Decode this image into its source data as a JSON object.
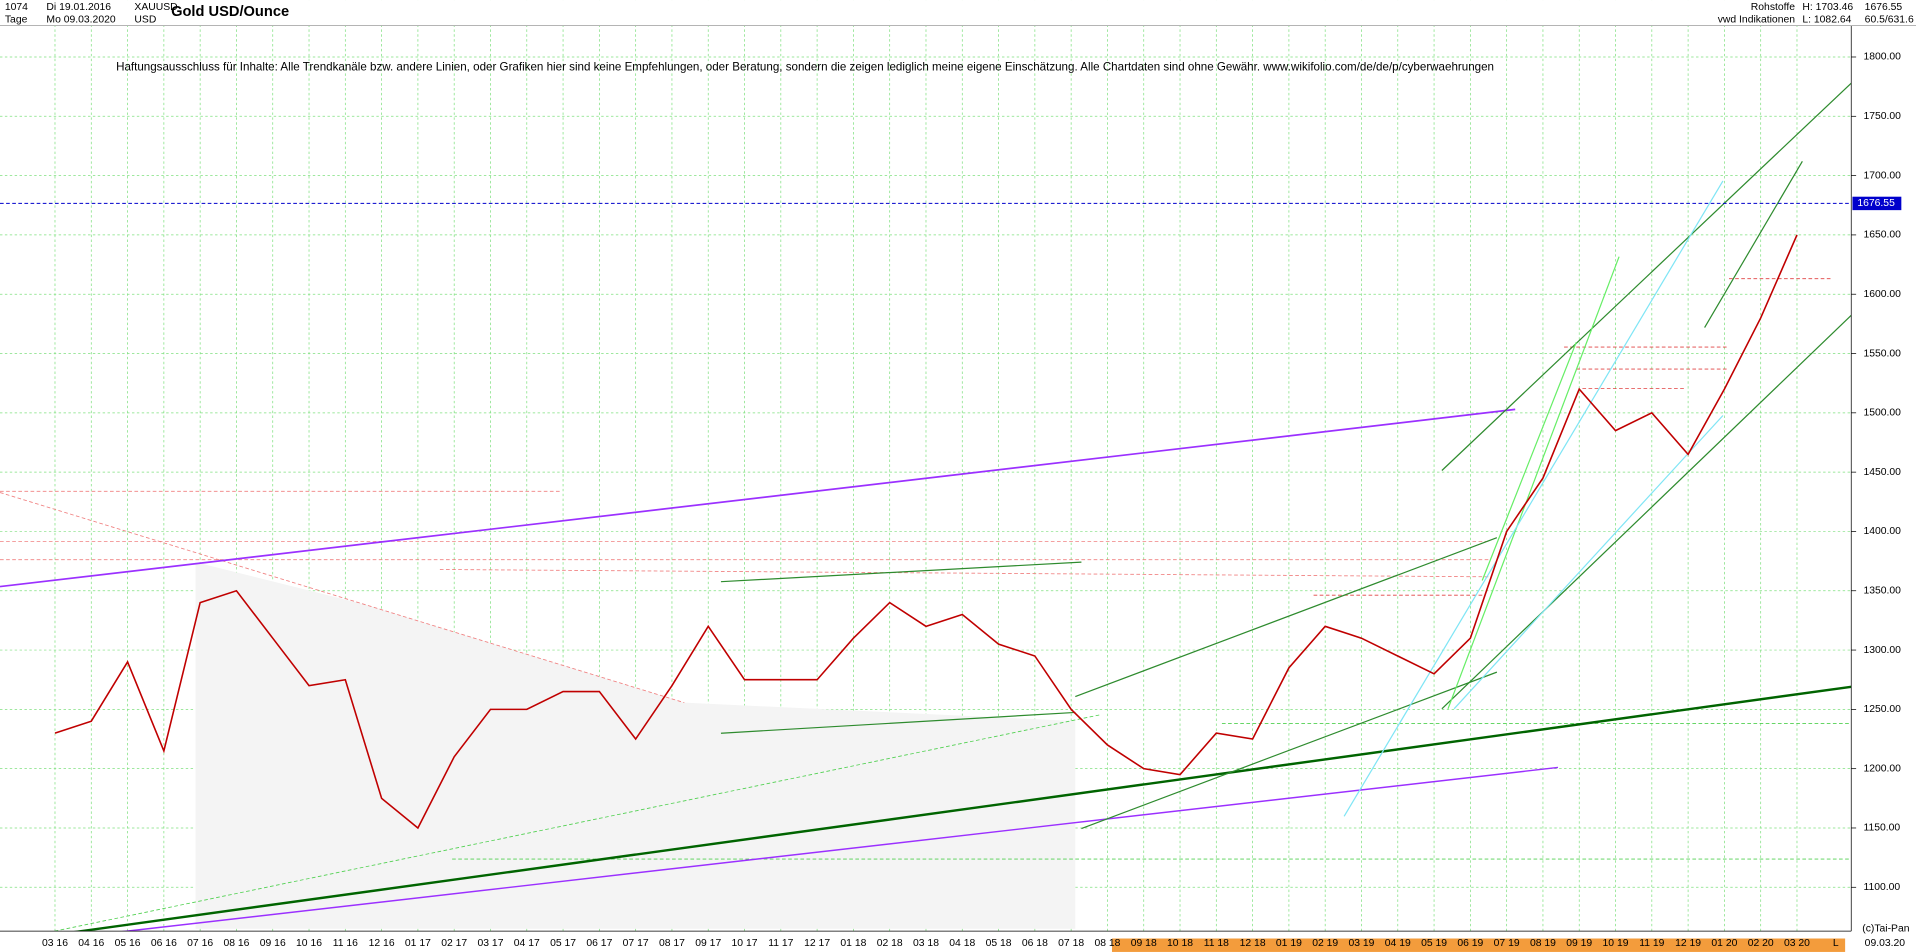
{
  "header": {
    "bars": "1074",
    "from": "Di 19.01.2016",
    "period": "Tage",
    "to": "Mo 09.03.2020",
    "symbol": "XAUUSD",
    "currency": "USD",
    "group": "Rohstoffe",
    "source": "vwd Indikationen",
    "high": "H: 1703.46",
    "low": "L: 1082.64",
    "ratio": "60.5/631.6",
    "copyright": "(c)Tai-Pan",
    "date": "09.03.20",
    "scale": "L"
  },
  "chart_data": {
    "type": "line",
    "title": "Gold USD/Ounce",
    "annotation": "Haftungsausschluss für Inhalte: Alle Trendkanäle bzw. andere Linien, oder Grafiken hier sind keine Empfehlungen, oder Beratung, sondern die zeigen lediglich meine eigene Einschätzung. Alle Chartdaten sind ohne Gewähr.  www.wikifolio.com/de/de/p/cyberwaehrungen",
    "categories": [
      "03 16",
      "04 16",
      "05 16",
      "06 16",
      "07 16",
      "08 16",
      "09 16",
      "10 16",
      "11 16",
      "12 16",
      "01 17",
      "02 17",
      "03 17",
      "04 17",
      "05 17",
      "06 17",
      "07 17",
      "08 17",
      "09 17",
      "10 17",
      "11 17",
      "12 17",
      "01 18",
      "02 18",
      "03 18",
      "04 18",
      "05 18",
      "06 18",
      "07 18",
      "08 18",
      "09 18",
      "10 18",
      "11 18",
      "12 18",
      "01 19",
      "02 19",
      "03 19",
      "04 19",
      "05 19",
      "06 19",
      "07 19",
      "08 19",
      "09 19",
      "10 19",
      "11 19",
      "12 19",
      "01 20",
      "02 20",
      "03 20"
    ],
    "values": [
      1230,
      1240,
      1290,
      1215,
      1340,
      1350,
      1310,
      1270,
      1275,
      1175,
      1150,
      1210,
      1250,
      1250,
      1265,
      1265,
      1225,
      1270,
      1320,
      1275,
      1275,
      1275,
      1310,
      1340,
      1320,
      1330,
      1305,
      1295,
      1250,
      1220,
      1200,
      1195,
      1230,
      1225,
      1285,
      1320,
      1310,
      1295,
      1280,
      1310,
      1400,
      1445,
      1520,
      1485,
      1500,
      1465,
      1520,
      1580,
      1650
    ],
    "color": "#c00000",
    "last_price": 1676.55,
    "ylim": [
      1063,
      1848
    ],
    "yticks": [
      {
        "value": 1100,
        "label": "1100.00"
      },
      {
        "value": 1150,
        "label": "1150.00"
      },
      {
        "value": 1200,
        "label": "1200.00"
      },
      {
        "value": 1250,
        "label": "1250.00"
      },
      {
        "value": 1300,
        "label": "1300.00"
      },
      {
        "value": 1350,
        "label": "1350.00"
      },
      {
        "value": 1400,
        "label": "1400.00"
      },
      {
        "value": 1450,
        "label": "1450.00"
      },
      {
        "value": 1500,
        "label": "1500.00"
      },
      {
        "value": 1550,
        "label": "1550.00"
      },
      {
        "value": 1600,
        "label": "1600.00"
      },
      {
        "value": 1650,
        "label": "1650.00"
      },
      {
        "value": 1700,
        "label": "1700.00"
      },
      {
        "value": 1750,
        "label": "1750.00"
      },
      {
        "value": 1800,
        "label": "1800.00"
      }
    ],
    "grid": true
  }
}
